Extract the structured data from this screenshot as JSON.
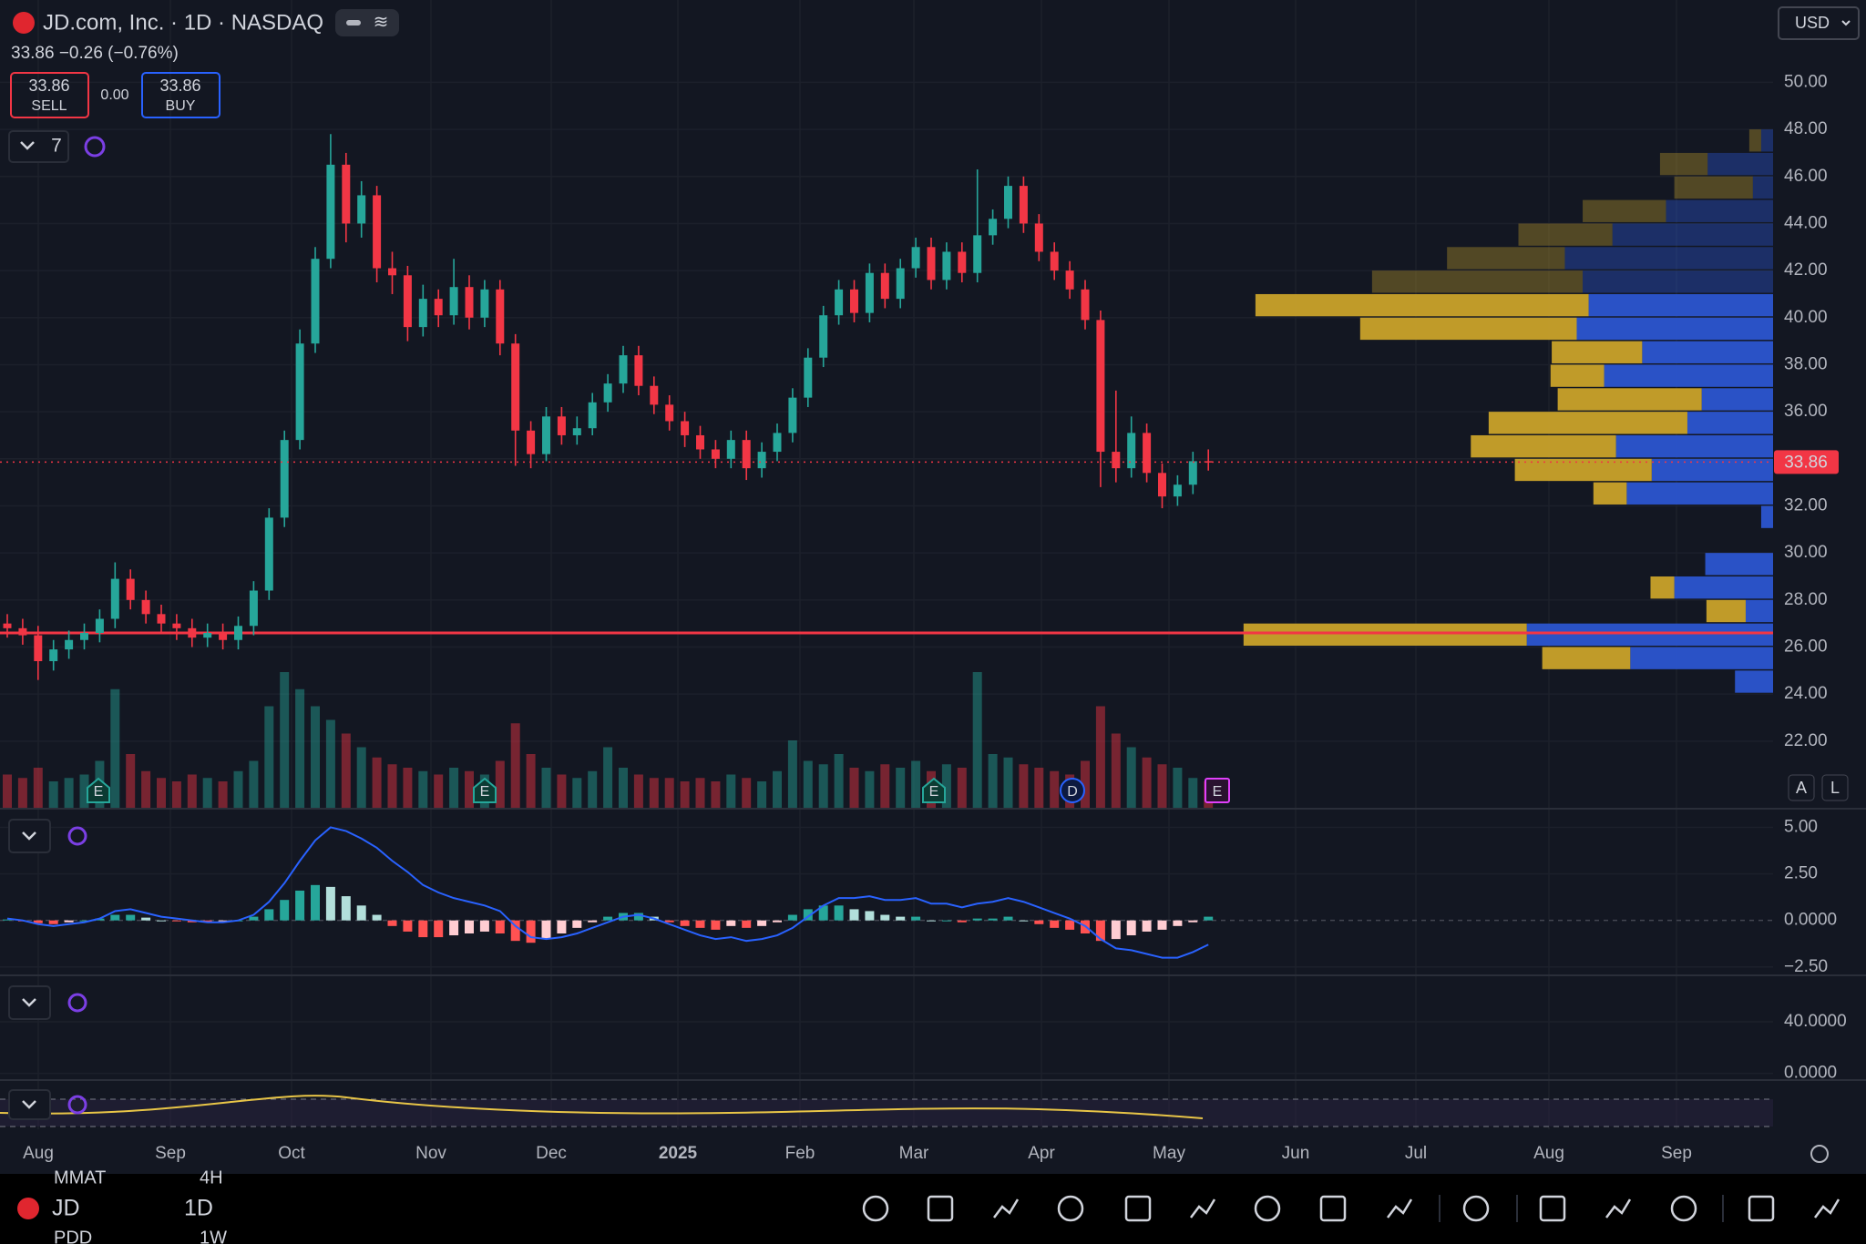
{
  "ui": {
    "title": "JD.com, Inc. · 1D · NASDAQ",
    "change": "33.86 −0.26 (−0.76%)",
    "sell_price": "33.86",
    "sell_label": "SELL",
    "spread": "0.00",
    "buy_price": "33.86",
    "buy_label": "BUY",
    "indicator_count": "7",
    "currency": "USD",
    "x_labels": [
      "Aug",
      "Sep",
      "Oct",
      "Nov",
      "Dec",
      "2025",
      "Feb",
      "Mar",
      "Apr",
      "May",
      "Jun",
      "Jul",
      "Aug",
      "Sep"
    ],
    "events": [
      "E",
      "E",
      "E",
      "D",
      "E"
    ],
    "scale_buttons": [
      "A",
      "L"
    ],
    "toolbar": {
      "symbol": "JD",
      "interval": "1D"
    },
    "ghost": [
      "MMAT",
      "4H",
      "PDD",
      "1W"
    ]
  },
  "chart_data": [
    {
      "type": "candlestick",
      "up_color": "#26a69a",
      "down_color": "#f23645",
      "grid": true,
      "open": [
        27.0,
        26.8,
        26.5,
        25.4,
        25.9,
        26.3,
        26.6,
        27.2,
        28.9,
        28.0,
        27.4,
        27.0,
        26.8,
        26.4,
        26.6,
        26.3,
        26.9,
        28.4,
        31.5,
        34.8,
        38.9,
        42.5,
        46.5,
        44.0,
        45.2,
        42.1,
        41.8,
        39.6,
        40.8,
        40.1,
        41.3,
        40.0,
        41.2,
        38.9,
        35.2,
        34.2,
        35.8,
        35.0,
        35.3,
        36.4,
        37.2,
        38.4,
        37.1,
        36.3,
        35.6,
        35.0,
        34.4,
        34.0,
        34.8,
        33.6,
        34.3,
        35.1,
        36.6,
        38.3,
        40.1,
        41.2,
        40.2,
        41.9,
        40.8,
        42.1,
        43.0,
        41.6,
        42.8,
        41.9,
        43.5,
        44.2,
        45.6,
        44.0,
        42.8,
        42.0,
        41.2,
        39.9,
        34.3,
        33.6,
        35.1,
        33.4,
        32.4,
        32.9,
        33.9
      ],
      "high": [
        27.4,
        27.2,
        26.9,
        26.3,
        26.7,
        27.0,
        27.6,
        29.6,
        29.3,
        28.4,
        27.8,
        27.4,
        27.2,
        27.0,
        27.0,
        27.3,
        28.8,
        31.9,
        35.2,
        39.5,
        43.0,
        47.8,
        47.0,
        45.8,
        45.6,
        42.8,
        42.2,
        41.4,
        41.2,
        42.5,
        41.8,
        41.6,
        41.6,
        39.3,
        35.6,
        36.2,
        36.2,
        35.8,
        36.8,
        37.6,
        38.8,
        38.8,
        37.5,
        36.7,
        36.0,
        35.4,
        34.8,
        35.2,
        35.2,
        34.7,
        35.5,
        37.0,
        38.7,
        40.5,
        41.6,
        41.6,
        42.3,
        42.3,
        42.5,
        43.4,
        43.4,
        43.2,
        43.2,
        46.3,
        44.6,
        46.0,
        46.0,
        44.4,
        43.2,
        42.4,
        41.6,
        40.3,
        36.9,
        35.8,
        35.5,
        33.8,
        33.3,
        34.3,
        34.4
      ],
      "low": [
        26.4,
        26.1,
        24.6,
        25.0,
        25.5,
        25.9,
        26.2,
        26.8,
        27.6,
        27.0,
        26.6,
        26.3,
        26.0,
        26.0,
        25.9,
        25.9,
        26.5,
        28.0,
        31.1,
        34.4,
        38.5,
        42.1,
        43.2,
        43.4,
        41.5,
        41.0,
        39.0,
        39.2,
        39.6,
        39.7,
        39.5,
        39.6,
        38.4,
        33.7,
        33.6,
        33.9,
        34.6,
        34.6,
        35.0,
        36.0,
        36.8,
        36.7,
        35.9,
        35.2,
        34.5,
        34.0,
        33.6,
        33.6,
        33.1,
        33.2,
        33.9,
        34.7,
        36.2,
        37.9,
        39.7,
        39.8,
        39.8,
        40.4,
        40.4,
        41.7,
        41.2,
        41.2,
        41.5,
        41.5,
        43.1,
        43.8,
        43.6,
        42.4,
        41.6,
        40.8,
        39.5,
        32.8,
        33.0,
        33.2,
        33.0,
        31.9,
        32.0,
        32.5,
        33.5
      ],
      "close": [
        26.8,
        26.5,
        25.4,
        25.9,
        26.3,
        26.6,
        27.2,
        28.9,
        28.0,
        27.4,
        27.0,
        26.8,
        26.4,
        26.6,
        26.3,
        26.9,
        28.4,
        31.5,
        34.8,
        38.9,
        42.5,
        46.5,
        44.0,
        45.2,
        42.1,
        41.8,
        39.6,
        40.8,
        40.1,
        41.3,
        40.0,
        41.2,
        38.9,
        35.2,
        34.2,
        35.8,
        35.0,
        35.3,
        36.4,
        37.2,
        38.4,
        37.1,
        36.3,
        35.6,
        35.0,
        34.4,
        34.0,
        34.8,
        33.6,
        34.3,
        35.1,
        36.6,
        38.3,
        40.1,
        41.2,
        40.2,
        41.9,
        40.8,
        42.1,
        43.0,
        41.6,
        42.8,
        41.9,
        43.5,
        44.2,
        45.6,
        44.0,
        42.8,
        42.0,
        41.2,
        39.9,
        34.3,
        33.6,
        35.1,
        33.4,
        32.4,
        32.9,
        33.9,
        33.86
      ],
      "volume": [
        10,
        9,
        12,
        8,
        9,
        10,
        14,
        35,
        16,
        11,
        9,
        8,
        10,
        9,
        8,
        11,
        14,
        30,
        40,
        35,
        30,
        26,
        22,
        18,
        15,
        13,
        12,
        11,
        10,
        12,
        11,
        10,
        14,
        25,
        16,
        12,
        10,
        9,
        11,
        18,
        12,
        10,
        9,
        9,
        8,
        9,
        8,
        10,
        9,
        8,
        11,
        20,
        14,
        13,
        16,
        12,
        11,
        13,
        12,
        14,
        11,
        13,
        12,
        40,
        16,
        15,
        13,
        12,
        11,
        10,
        14,
        30,
        22,
        18,
        15,
        13,
        12,
        9,
        8
      ],
      "ylim": [
        19.13,
        53.5
      ],
      "yticks": [
        {
          "value": 22,
          "label": "22.00"
        },
        {
          "value": 24,
          "label": "24.00"
        },
        {
          "value": 26,
          "label": "26.00"
        },
        {
          "value": 28,
          "label": "28.00"
        },
        {
          "value": 30,
          "label": "30.00"
        },
        {
          "value": 32,
          "label": "32.00"
        },
        {
          "value": 34,
          "label": "34.00"
        },
        {
          "value": 36,
          "label": "36.00"
        },
        {
          "value": 38,
          "label": "38.00"
        },
        {
          "value": 40,
          "label": "40.00"
        },
        {
          "value": 42,
          "label": "42.00"
        },
        {
          "value": 44,
          "label": "44.00"
        },
        {
          "value": 46,
          "label": "46.00"
        },
        {
          "value": 48,
          "label": "48.00"
        },
        {
          "value": 50,
          "label": "50.00"
        }
      ],
      "last_price": 33.86,
      "hline": {
        "value": 26.6,
        "color": "#f23645"
      },
      "volume_profile": {
        "buy_color": "#2b55d0",
        "sell_color": "#c9a22a",
        "value_area_high": 41,
        "levels": [
          47.5,
          46.5,
          45.5,
          44.5,
          43.5,
          42.5,
          41.5,
          40.5,
          39.5,
          38.5,
          37.5,
          36.5,
          35.5,
          34.5,
          33.5,
          32.5,
          31.5,
          29.5,
          28.5,
          27.5,
          26.5,
          25.5,
          24.5
        ],
        "buy": [
          10,
          55,
          17,
          90,
          135,
          175,
          160,
          155,
          165,
          110,
          142,
          60,
          72,
          132,
          102,
          123,
          10,
          57,
          83,
          23,
          207,
          120,
          32
        ],
        "sell": [
          10,
          40,
          66,
          70,
          79,
          99,
          177,
          280,
          182,
          76,
          45,
          121,
          167,
          122,
          115,
          28,
          0,
          0,
          20,
          33,
          238,
          74,
          0
        ]
      }
    },
    {
      "type": "macd",
      "line_color": "#2962ff",
      "macd": [
        0.1,
        0,
        -0.2,
        -0.3,
        -0.2,
        -0.1,
        0.1,
        0.5,
        0.6,
        0.4,
        0.2,
        0.1,
        0,
        -0.1,
        -0.1,
        0,
        0.3,
        1.0,
        2.0,
        3.2,
        4.3,
        5.0,
        4.8,
        4.4,
        3.9,
        3.2,
        2.6,
        1.9,
        1.5,
        1.2,
        1.0,
        0.8,
        0.5,
        -0.3,
        -0.9,
        -1.0,
        -0.9,
        -0.7,
        -0.4,
        -0.1,
        0.2,
        0.3,
        0.1,
        -0.2,
        -0.5,
        -0.8,
        -1.0,
        -0.9,
        -1.1,
        -1.0,
        -0.8,
        -0.4,
        0.2,
        0.8,
        1.2,
        1.2,
        1.3,
        1.1,
        1.1,
        1.2,
        0.9,
        0.9,
        0.7,
        0.9,
        1.0,
        1.2,
        1.0,
        0.7,
        0.4,
        0.1,
        -0.3,
        -1.0,
        -1.5,
        -1.6,
        -1.8,
        -2.0,
        -2.0,
        -1.7,
        -1.3
      ],
      "histogram": [
        0.05,
        -0.05,
        -0.15,
        -0.2,
        -0.1,
        0,
        0.1,
        0.3,
        0.3,
        0.15,
        0,
        -0.05,
        -0.1,
        -0.1,
        -0.05,
        0,
        0.2,
        0.6,
        1.1,
        1.6,
        1.9,
        1.8,
        1.3,
        0.8,
        0.3,
        -0.3,
        -0.6,
        -0.9,
        -0.9,
        -0.8,
        -0.7,
        -0.6,
        -0.7,
        -1.1,
        -1.2,
        -1.0,
        -0.7,
        -0.4,
        -0.1,
        0.2,
        0.4,
        0.4,
        0.2,
        -0.1,
        -0.3,
        -0.4,
        -0.5,
        -0.3,
        -0.4,
        -0.3,
        -0.1,
        0.3,
        0.6,
        0.8,
        0.8,
        0.6,
        0.5,
        0.3,
        0.2,
        0.2,
        0,
        0,
        -0.1,
        0.1,
        0.1,
        0.2,
        0,
        -0.2,
        -0.4,
        -0.5,
        -0.7,
        -1.1,
        -1.0,
        -0.8,
        -0.6,
        -0.5,
        -0.3,
        -0.1,
        0.2
      ],
      "ylim": [
        -2.95,
        6.0
      ],
      "yticks": [
        {
          "value": 5,
          "label": "5.00"
        },
        {
          "value": 2.5,
          "label": "2.50"
        },
        {
          "value": 0,
          "label": "0.0000"
        },
        {
          "value": -2.5,
          "label": "−2.50"
        }
      ]
    },
    {
      "type": "line",
      "ylim": [
        -4.5,
        75.3
      ],
      "yticks": [
        {
          "value": 40,
          "label": "40.0000"
        },
        {
          "value": 0,
          "label": "0.0000"
        }
      ]
    }
  ]
}
